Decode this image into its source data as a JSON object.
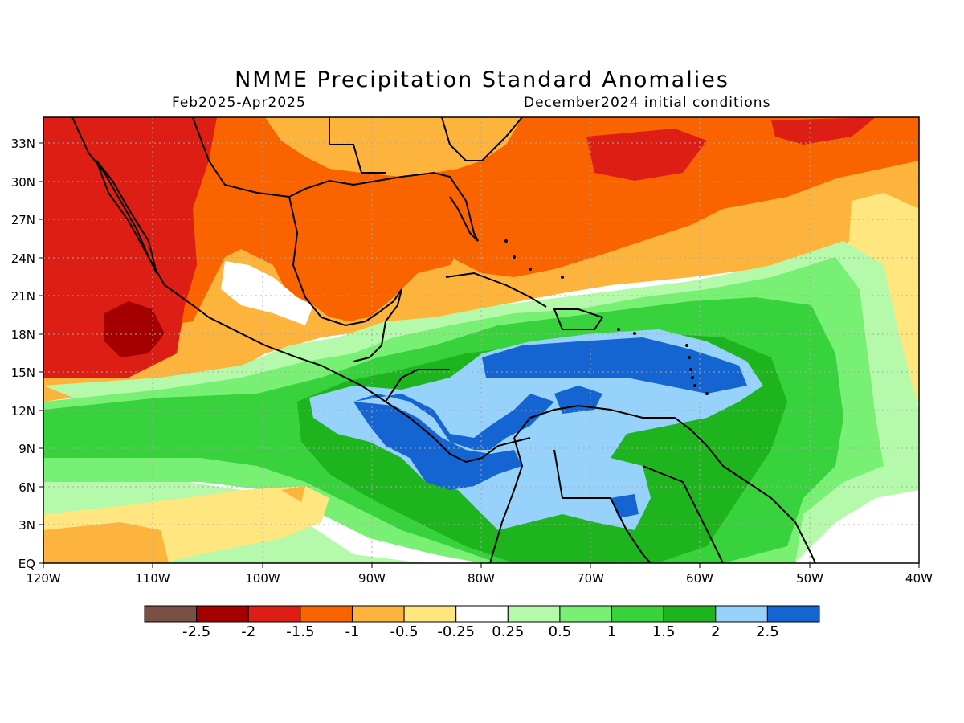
{
  "title": "NMME Precipitation Standard Anomalies",
  "period": "Feb2025-Apr2025",
  "initial_conditions": "December2024 initial conditions",
  "lat_labels": [
    "33N",
    "30N",
    "27N",
    "24N",
    "21N",
    "18N",
    "15N",
    "12N",
    "9N",
    "6N",
    "3N",
    "EQ"
  ],
  "lon_labels": [
    "120W",
    "110W",
    "100W",
    "90W",
    "80W",
    "70W",
    "60W",
    "50W",
    "40W"
  ],
  "colorbar": {
    "colors": [
      "#7b5044",
      "#a50000",
      "#dc1e14",
      "#fa6400",
      "#fdb43c",
      "#ffe67e",
      "#ffffff",
      "#b4faaa",
      "#78f073",
      "#37d23c",
      "#1eb41e",
      "#96d2fa",
      "#1464d2"
    ],
    "labels": [
      "-2.5",
      "-2",
      "-1.5",
      "-1",
      "-0.5",
      "-0.25",
      "0.25",
      "0.5",
      "1",
      "1.5",
      "2",
      "2.5"
    ]
  },
  "chart_data": {
    "type": "heatmap",
    "variable": "precipitation standard anomaly",
    "lon_range": [
      -120,
      -40
    ],
    "lat_range": [
      0,
      35
    ],
    "grid": true,
    "regions": [
      {
        "area": "NW Mexico / Gulf of California",
        "anomaly": -1.5
      },
      {
        "area": "E Pacific west of Mexico (~18N 112W)",
        "anomaly": -2.5
      },
      {
        "area": "Gulf of Mexico",
        "anomaly": -1
      },
      {
        "area": "SE US / Florida",
        "anomaly": -0.5
      },
      {
        "area": "W Atlantic 30N-35N",
        "anomaly": -1.5
      },
      {
        "area": "Central Caribbean (~15N 70W)",
        "anomaly": 2.5
      },
      {
        "area": "Central America Pacific coast (~11N 88W)",
        "anomaly": 2.5
      },
      {
        "area": "Panama / Costa Rica",
        "anomaly": 2.5
      },
      {
        "area": "Venezuela / Guyana interior",
        "anomaly": 2
      },
      {
        "area": "Tropical Atlantic 5N-15N",
        "anomaly": 1.5
      },
      {
        "area": "E Pacific 0-5N",
        "anomaly": -0.5
      }
    ]
  }
}
